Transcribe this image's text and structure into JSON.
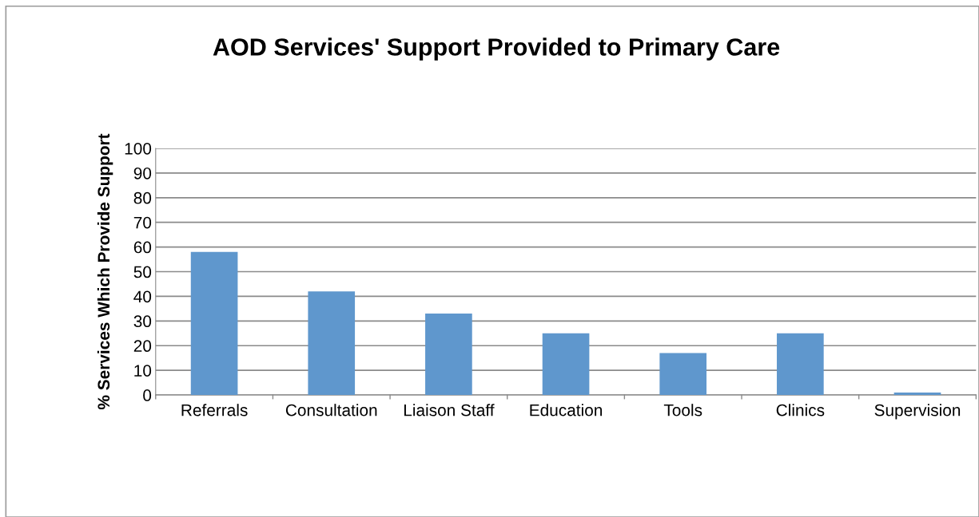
{
  "chart_data": {
    "type": "bar",
    "title": "AOD Services' Support Provided to Primary Care",
    "ylabel": "% Services Which Provide Support",
    "categories": [
      "Referrals",
      "Consultation",
      "Liaison Staff",
      "Education",
      "Tools",
      "Clinics",
      "Supervision"
    ],
    "values": [
      58,
      42,
      33,
      25,
      17,
      25,
      1
    ],
    "color": "#5f97cd",
    "ylim": [
      0,
      100
    ],
    "yticks": [
      0,
      10,
      20,
      30,
      40,
      50,
      60,
      70,
      80,
      90,
      100
    ],
    "grid": "y"
  }
}
